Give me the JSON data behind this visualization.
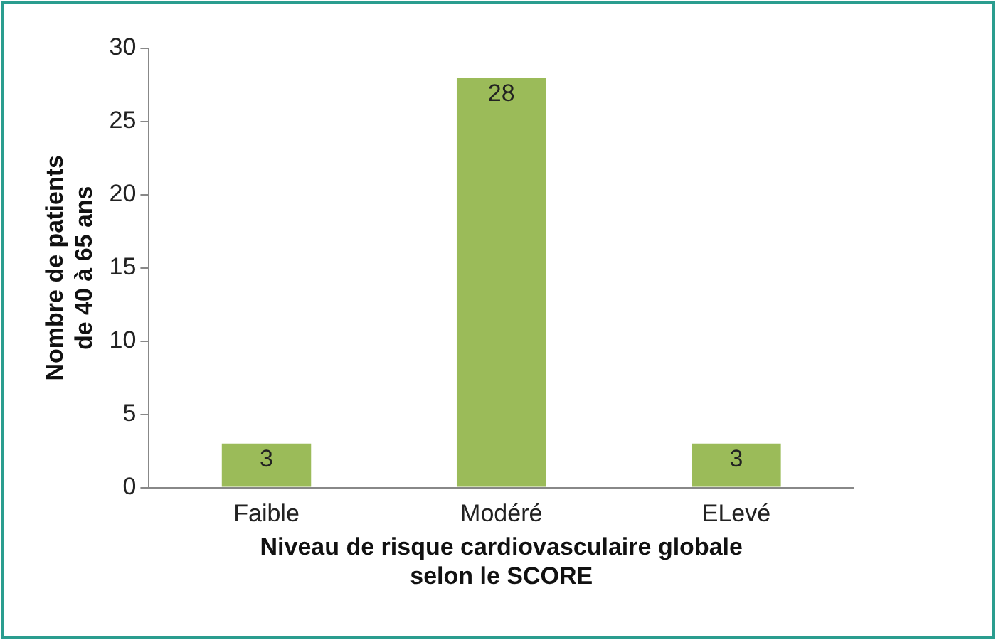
{
  "chart_data": {
    "type": "bar",
    "categories": [
      "Faible",
      "Modéré",
      "ELevé"
    ],
    "values": [
      3,
      28,
      3
    ],
    "color": "#9bbb59",
    "xlabel": "Niveau de risque cardiovasculaire globale\nselon le SCORE",
    "ylabel": "Nombre de patients\nde 40 à 65 ans",
    "ylim": [
      0,
      30
    ],
    "yticks": [
      0,
      5,
      10,
      15,
      20,
      25,
      30
    ],
    "grid": false,
    "legend": false,
    "data_labels": true
  }
}
